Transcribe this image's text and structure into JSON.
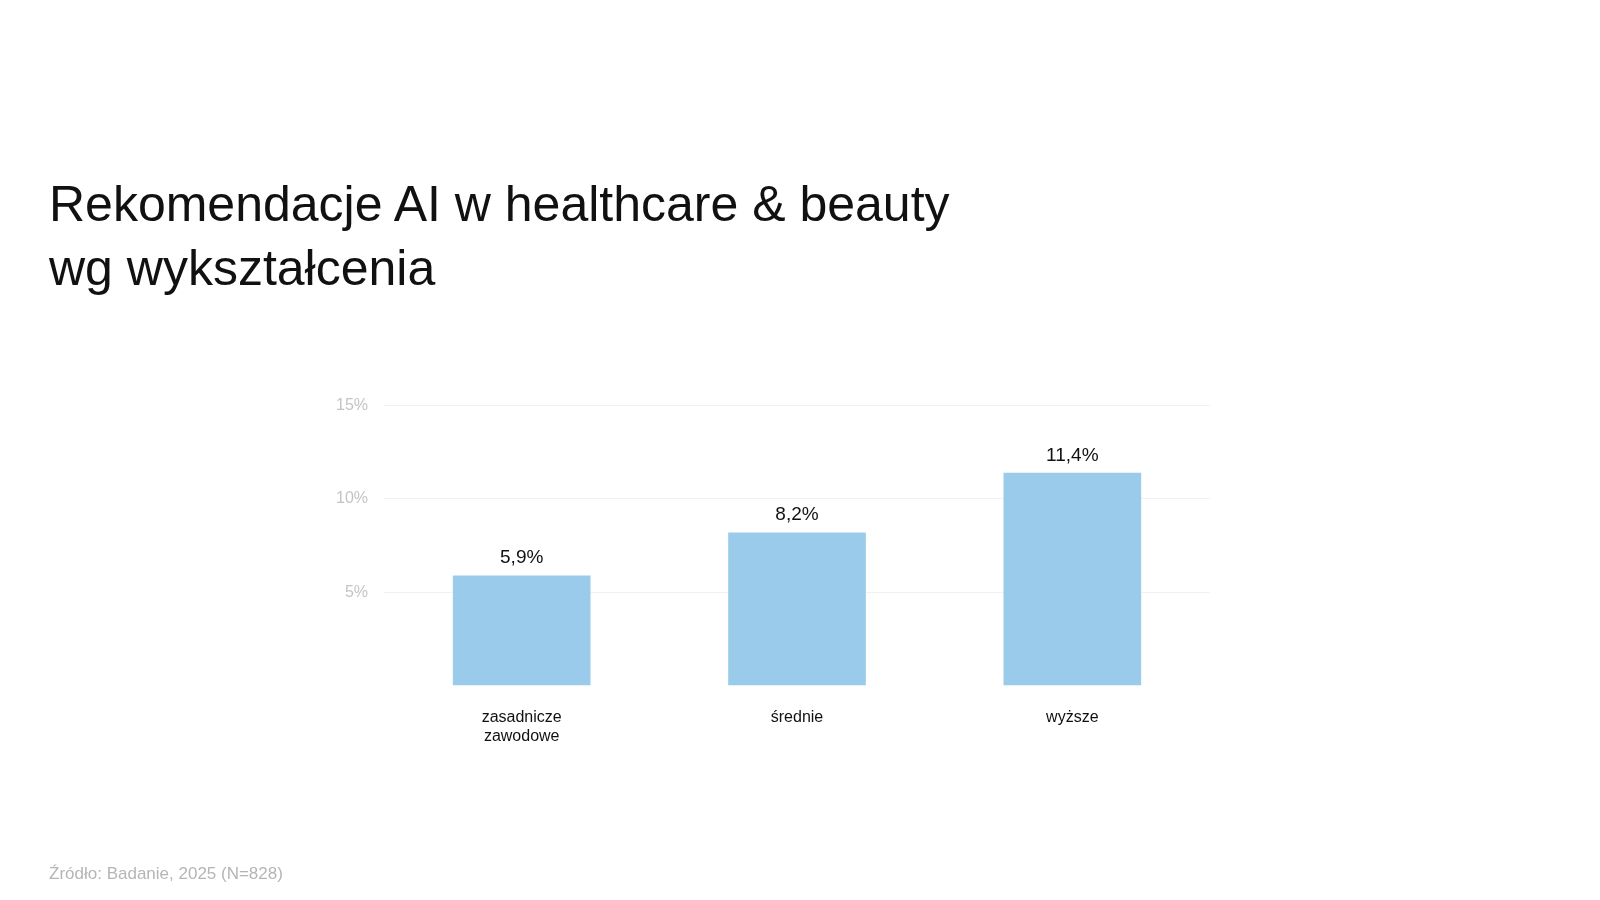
{
  "chart_data": {
    "type": "bar",
    "title": "Rekomendacje AI w healthcare & beauty\nwg wykształcenia",
    "categories": [
      "zasadnicze zawodowe",
      "średnie",
      "wyższe"
    ],
    "values": [
      5.9,
      8.2,
      11.4
    ],
    "color": "#9bcbea",
    "value_labels": [
      "5,9%",
      "8,2%",
      "11,4%"
    ],
    "ylim": [
      0,
      15
    ],
    "yticks": [
      {
        "value": 5,
        "label": "5%"
      },
      {
        "value": 10,
        "label": "10%"
      },
      {
        "value": 15,
        "label": "15%"
      }
    ],
    "grid": "y",
    "annotations": [
      "Źródło: Badanie, 2025 (N=828)"
    ]
  }
}
